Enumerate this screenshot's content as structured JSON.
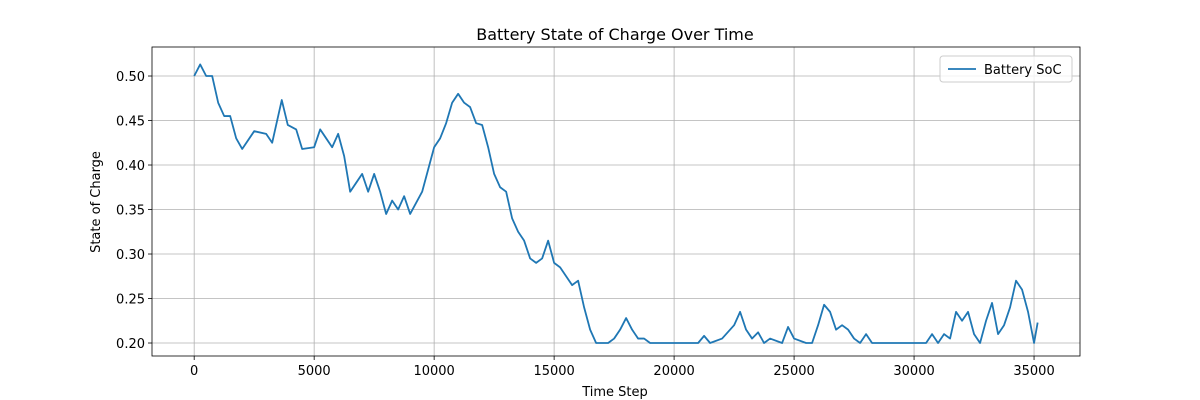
{
  "chart_data": {
    "type": "line",
    "title": "Battery State of Charge Over Time",
    "x_label": "Time Step",
    "y_label": "State of Charge",
    "x": [
      0,
      250,
      500,
      750,
      1000,
      1250,
      1500,
      1750,
      2000,
      2500,
      3000,
      3250,
      3500,
      3650,
      3900,
      4250,
      4500,
      5000,
      5250,
      5500,
      5750,
      6000,
      6250,
      6500,
      6750,
      7000,
      7250,
      7500,
      7750,
      8000,
      8250,
      8500,
      8750,
      9000,
      9500,
      9750,
      10000,
      10250,
      10500,
      10750,
      11000,
      11250,
      11500,
      11750,
      12000,
      12250,
      12500,
      12750,
      13000,
      13250,
      13500,
      13750,
      14000,
      14250,
      14500,
      14750,
      15000,
      15250,
      15500,
      15750,
      16000,
      16250,
      16500,
      16750,
      17000,
      17250,
      17500,
      17750,
      18000,
      18250,
      18500,
      18750,
      19000,
      20000,
      21000,
      21250,
      21500,
      22000,
      22500,
      22750,
      23000,
      23250,
      23500,
      23750,
      24000,
      24500,
      24750,
      25000,
      25500,
      25750,
      26000,
      26250,
      26500,
      26750,
      27000,
      27250,
      27500,
      27750,
      28000,
      28250,
      28500,
      29000,
      30000,
      30500,
      30750,
      31000,
      31250,
      31500,
      31750,
      32000,
      32250,
      32500,
      32750,
      33000,
      33250,
      33500,
      33750,
      34000,
      34250,
      34500,
      34750,
      35000,
      35150
    ],
    "series": [
      {
        "name": "Battery SoC",
        "color": "#1f77b4",
        "values": [
          0.5,
          0.513,
          0.5,
          0.5,
          0.47,
          0.455,
          0.455,
          0.43,
          0.418,
          0.438,
          0.435,
          0.425,
          0.455,
          0.473,
          0.445,
          0.44,
          0.418,
          0.42,
          0.44,
          0.43,
          0.42,
          0.435,
          0.41,
          0.37,
          0.38,
          0.39,
          0.37,
          0.39,
          0.37,
          0.345,
          0.36,
          0.35,
          0.365,
          0.345,
          0.37,
          0.395,
          0.42,
          0.43,
          0.447,
          0.47,
          0.48,
          0.47,
          0.465,
          0.447,
          0.445,
          0.42,
          0.39,
          0.375,
          0.37,
          0.34,
          0.325,
          0.315,
          0.295,
          0.29,
          0.295,
          0.315,
          0.29,
          0.285,
          0.275,
          0.265,
          0.27,
          0.24,
          0.215,
          0.2,
          0.2,
          0.2,
          0.205,
          0.215,
          0.228,
          0.215,
          0.205,
          0.205,
          0.2,
          0.2,
          0.2,
          0.208,
          0.2,
          0.205,
          0.22,
          0.235,
          0.215,
          0.205,
          0.212,
          0.2,
          0.205,
          0.2,
          0.218,
          0.205,
          0.2,
          0.2,
          0.22,
          0.243,
          0.235,
          0.215,
          0.22,
          0.215,
          0.205,
          0.2,
          0.21,
          0.2,
          0.2,
          0.2,
          0.2,
          0.2,
          0.21,
          0.2,
          0.21,
          0.205,
          0.235,
          0.225,
          0.235,
          0.21,
          0.2,
          0.225,
          0.245,
          0.21,
          0.22,
          0.24,
          0.27,
          0.26,
          0.235,
          0.2,
          0.223
        ]
      }
    ],
    "xlim": [
      -1758,
      36915
    ],
    "ylim": [
      0.1854,
      0.5326
    ],
    "xticks": [
      0,
      5000,
      10000,
      15000,
      20000,
      25000,
      30000,
      35000
    ],
    "yticks": [
      {
        "value": 0.2,
        "label": "0.20"
      },
      0.25,
      {
        "value": 0.3,
        "label": "0.30"
      },
      0.35,
      {
        "value": 0.4,
        "label": "0.40"
      },
      0.45,
      {
        "value": 0.5,
        "label": "0.50"
      }
    ],
    "grid": true,
    "legend": "upper right"
  }
}
